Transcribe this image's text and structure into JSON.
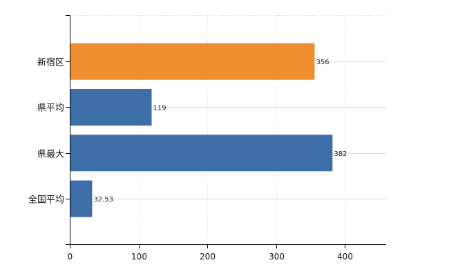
{
  "chart_data": {
    "type": "bar",
    "orientation": "horizontal",
    "categories": [
      "新宿区",
      "県平均",
      "県最大",
      "全国平均"
    ],
    "values": [
      356,
      119,
      382,
      32.53
    ],
    "value_labels": [
      "356",
      "119",
      "382",
      "32.53"
    ],
    "bar_colors": [
      "#ef8d2f",
      "#3d6ea8",
      "#3d6ea8",
      "#3d6ea8"
    ],
    "xlim": [
      0,
      460
    ],
    "xticks": [
      0,
      100,
      200,
      300,
      400
    ],
    "xtick_labels": [
      "0",
      "100",
      "200",
      "300",
      "400"
    ],
    "grid": true,
    "legend": "none"
  }
}
